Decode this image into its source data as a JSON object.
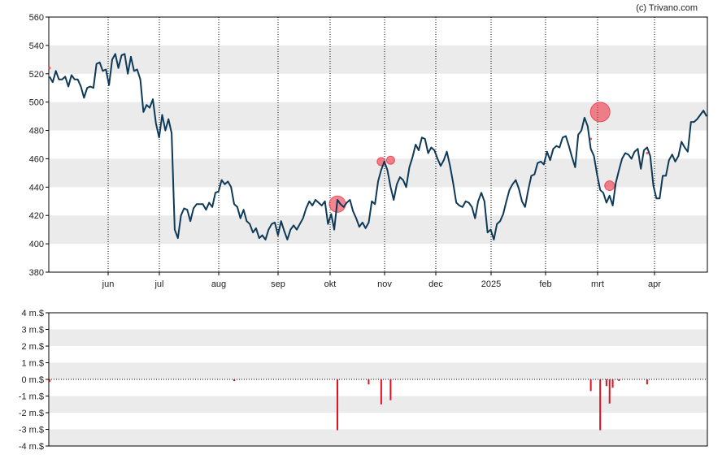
{
  "credit": "(c) Trivano.com",
  "colors": {
    "price_line": "#0e3a58",
    "band": "#ebebeb",
    "bubble": "#ee3344",
    "volume_bar": "#dd1122",
    "frame": "#000000",
    "grid": "#000000"
  },
  "chart_data": [
    {
      "type": "line",
      "name": "price",
      "ylim": [
        380,
        560
      ],
      "yticks": [
        380,
        400,
        420,
        440,
        460,
        480,
        500,
        520,
        540,
        560
      ],
      "month_labels": [
        "jun",
        "jul",
        "aug",
        "sep",
        "okt",
        "nov",
        "dec",
        "2025",
        "feb",
        "mrt",
        "apr"
      ],
      "series": [
        {
          "points": [
            [
              0,
              518
            ],
            [
              1,
              514
            ],
            [
              2,
              522
            ],
            [
              3,
              516
            ],
            [
              4,
              516
            ],
            [
              5,
              518
            ],
            [
              6,
              511
            ],
            [
              7,
              519
            ],
            [
              8,
              516
            ],
            [
              9,
              516
            ],
            [
              10,
              511
            ],
            [
              11,
              503
            ],
            [
              12,
              510
            ],
            [
              13,
              511
            ],
            [
              14,
              510
            ],
            [
              15,
              527
            ],
            [
              16,
              528
            ],
            [
              17,
              522
            ],
            [
              18,
              523
            ],
            [
              19,
              512
            ],
            [
              20,
              530
            ],
            [
              21,
              534
            ],
            [
              22,
              524
            ],
            [
              23,
              533
            ],
            [
              24,
              534
            ],
            [
              25,
              520
            ],
            [
              26,
              532
            ],
            [
              27,
              522
            ],
            [
              28,
              523
            ],
            [
              29,
              516
            ],
            [
              30,
              493
            ],
            [
              31,
              498
            ],
            [
              32,
              496
            ],
            [
              33,
              502
            ],
            [
              34,
              485
            ],
            [
              35,
              475
            ],
            [
              36,
              491
            ],
            [
              37,
              480
            ],
            [
              38,
              488
            ],
            [
              39,
              478
            ],
            [
              40,
              410
            ],
            [
              41,
              404
            ],
            [
              42,
              420
            ],
            [
              43,
              425
            ],
            [
              44,
              424
            ],
            [
              45,
              416
            ],
            [
              46,
              425
            ],
            [
              47,
              428
            ],
            [
              48,
              428
            ],
            [
              49,
              428
            ],
            [
              50,
              424
            ],
            [
              51,
              429
            ],
            [
              52,
              426
            ],
            [
              53,
              436
            ],
            [
              54,
              437
            ],
            [
              55,
              445
            ],
            [
              56,
              442
            ],
            [
              57,
              444
            ],
            [
              58,
              440
            ],
            [
              59,
              428
            ],
            [
              60,
              426
            ],
            [
              61,
              418
            ],
            [
              62,
              424
            ],
            [
              63,
              416
            ],
            [
              64,
              414
            ],
            [
              65,
              408
            ],
            [
              66,
              411
            ],
            [
              67,
              404
            ],
            [
              68,
              406
            ],
            [
              69,
              403
            ],
            [
              70,
              410
            ],
            [
              71,
              414
            ],
            [
              72,
              415
            ],
            [
              73,
              406
            ],
            [
              74,
              416
            ],
            [
              75,
              409
            ],
            [
              76,
              403
            ],
            [
              77,
              410
            ],
            [
              78,
              413
            ],
            [
              79,
              410
            ],
            [
              80,
              414
            ],
            [
              81,
              418
            ],
            [
              82,
              425
            ],
            [
              83,
              430
            ],
            [
              84,
              427
            ],
            [
              85,
              431
            ],
            [
              86,
              429
            ],
            [
              87,
              427
            ],
            [
              88,
              430
            ],
            [
              89,
              414
            ],
            [
              90,
              421
            ],
            [
              91,
              410
            ],
            [
              92,
              431
            ],
            [
              93,
              428
            ],
            [
              94,
              426
            ],
            [
              95,
              429
            ],
            [
              96,
              431
            ],
            [
              97,
              423
            ],
            [
              98,
              418
            ],
            [
              99,
              412
            ],
            [
              100,
              415
            ],
            [
              101,
              411
            ],
            [
              102,
              415
            ],
            [
              103,
              430
            ],
            [
              104,
              428
            ],
            [
              105,
              444
            ],
            [
              106,
              452
            ],
            [
              107,
              458
            ],
            [
              108,
              452
            ],
            [
              109,
              440
            ],
            [
              110,
              431
            ],
            [
              111,
              442
            ],
            [
              112,
              447
            ],
            [
              113,
              445
            ],
            [
              114,
              440
            ],
            [
              115,
              454
            ],
            [
              116,
              461
            ],
            [
              117,
              470
            ],
            [
              118,
              466
            ],
            [
              119,
              475
            ],
            [
              120,
              474
            ],
            [
              121,
              464
            ],
            [
              122,
              468
            ],
            [
              123,
              466
            ],
            [
              124,
              460
            ],
            [
              125,
              455
            ],
            [
              126,
              459
            ],
            [
              127,
              465
            ],
            [
              128,
              455
            ],
            [
              129,
              443
            ],
            [
              130,
              429
            ],
            [
              131,
              427
            ],
            [
              132,
              426
            ],
            [
              133,
              430
            ],
            [
              134,
              429
            ],
            [
              135,
              426
            ],
            [
              136,
              418
            ],
            [
              137,
              430
            ],
            [
              138,
              436
            ],
            [
              139,
              430
            ],
            [
              140,
              408
            ],
            [
              141,
              410
            ],
            [
              142,
              403
            ],
            [
              143,
              414
            ],
            [
              144,
              416
            ],
            [
              145,
              421
            ],
            [
              146,
              430
            ],
            [
              147,
              438
            ],
            [
              148,
              442
            ],
            [
              149,
              445
            ],
            [
              150,
              439
            ],
            [
              151,
              430
            ],
            [
              152,
              426
            ],
            [
              153,
              438
            ],
            [
              154,
              448
            ],
            [
              155,
              449
            ],
            [
              156,
              457
            ],
            [
              157,
              458
            ],
            [
              158,
              456
            ],
            [
              159,
              465
            ],
            [
              160,
              459
            ],
            [
              161,
              467
            ],
            [
              162,
              469
            ],
            [
              163,
              468
            ],
            [
              164,
              475
            ],
            [
              165,
              476
            ],
            [
              166,
              469
            ],
            [
              167,
              461
            ],
            [
              168,
              454
            ],
            [
              169,
              477
            ],
            [
              170,
              480
            ],
            [
              171,
              489
            ],
            [
              172,
              483
            ],
            [
              173,
              467
            ],
            [
              174,
              462
            ],
            [
              175,
              449
            ],
            [
              176,
              438
            ],
            [
              177,
              436
            ],
            [
              178,
              429
            ],
            [
              179,
              434
            ],
            [
              180,
              427
            ],
            [
              181,
              443
            ],
            [
              182,
              452
            ],
            [
              183,
              460
            ],
            [
              184,
              464
            ],
            [
              185,
              463
            ],
            [
              186,
              460
            ],
            [
              187,
              465
            ],
            [
              188,
              467
            ],
            [
              189,
              453
            ],
            [
              190,
              466
            ],
            [
              191,
              468
            ],
            [
              192,
              462
            ],
            [
              193,
              441
            ],
            [
              194,
              432
            ],
            [
              195,
              432
            ],
            [
              196,
              448
            ],
            [
              197,
              448
            ],
            [
              198,
              459
            ],
            [
              199,
              463
            ],
            [
              200,
              458
            ],
            [
              201,
              462
            ],
            [
              202,
              472
            ],
            [
              203,
              468
            ],
            [
              204,
              465
            ],
            [
              205,
              486
            ],
            [
              206,
              486
            ],
            [
              207,
              488
            ],
            [
              208,
              491
            ],
            [
              209,
              494
            ],
            [
              210,
              490
            ]
          ]
        }
      ]
    },
    {
      "type": "bar",
      "name": "insider-volume",
      "ylim": [
        -4,
        4
      ],
      "yticks": [
        "4 m.$",
        "3 m.$",
        "2 m.$",
        "1 m.$",
        "0 m.$",
        "-1 m.$",
        "-2 m.$",
        "-3 m.$",
        "-4 m.$"
      ],
      "bars": [
        [
          0,
          -0.15
        ],
        [
          59,
          -0.1
        ],
        [
          92,
          -3.05
        ],
        [
          102,
          -0.3
        ],
        [
          106,
          -1.5
        ],
        [
          109,
          -1.25
        ],
        [
          173,
          -0.7
        ],
        [
          176,
          -3.05
        ],
        [
          178,
          -0.4
        ],
        [
          179,
          -1.45
        ],
        [
          180,
          -0.5
        ],
        [
          182,
          -0.1
        ],
        [
          191,
          -0.3
        ]
      ],
      "bubbles": [
        [
          0,
          524,
          1
        ],
        [
          92,
          428,
          10
        ],
        [
          106,
          458,
          5
        ],
        [
          109,
          459,
          5
        ],
        [
          173,
          474,
          1
        ],
        [
          176,
          493,
          12
        ],
        [
          179,
          441,
          6
        ],
        [
          191,
          464,
          1
        ]
      ]
    }
  ]
}
